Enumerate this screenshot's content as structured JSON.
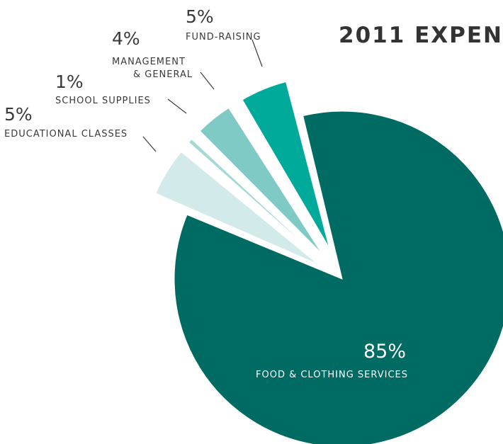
{
  "chart_data": {
    "type": "pie",
    "title": "2011 EXPEN",
    "unit": "%",
    "slices": [
      {
        "label_lines": [
          "FOOD & CLOTHING SERVICES"
        ],
        "value": 85,
        "value_label": "85%",
        "color": "#006b63",
        "exploded": false
      },
      {
        "label_lines": [
          "EDUCATIONAL CLASSES"
        ],
        "value": 5,
        "value_label": "5%",
        "color": "#d2eaea",
        "exploded": true
      },
      {
        "label_lines": [
          "SCHOOL SUPPLIES"
        ],
        "value": 1,
        "value_label": "1%",
        "color": "#a5d9d6",
        "exploded": true
      },
      {
        "label_lines": [
          "MANAGEMENT",
          "& GENERAL"
        ],
        "value": 4,
        "value_label": "4%",
        "color": "#7fcac4",
        "exploded": true
      },
      {
        "label_lines": [
          "FUND-RAISING"
        ],
        "value": 5,
        "value_label": "5%",
        "color": "#00aa9b",
        "exploded": true
      }
    ]
  }
}
